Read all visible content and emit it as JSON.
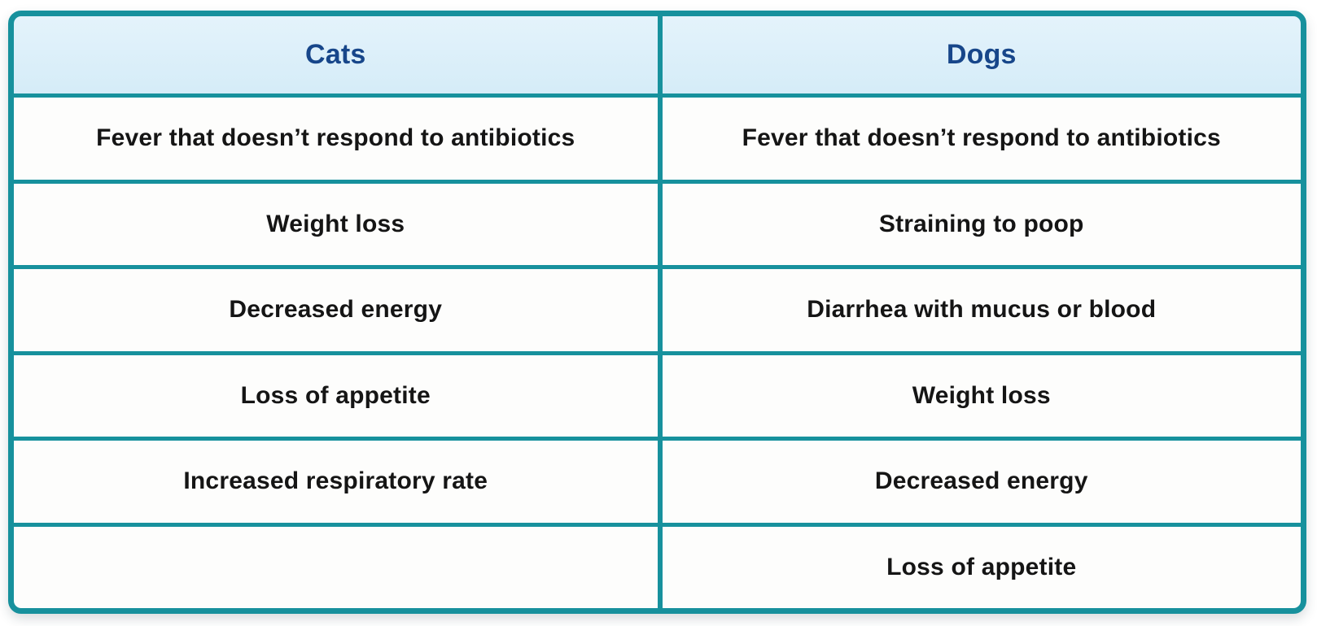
{
  "chart_data": {
    "type": "table",
    "title": "",
    "columns": [
      "Cats",
      "Dogs"
    ],
    "rows": [
      [
        "Fever that doesn’t respond to antibiotics",
        "Fever that doesn’t respond to antibiotics"
      ],
      [
        "Weight loss",
        "Straining to poop"
      ],
      [
        "Decreased energy",
        "Diarrhea with mucus or blood"
      ],
      [
        "Loss of appetite",
        "Weight loss"
      ],
      [
        "Increased respiratory rate",
        "Decreased energy"
      ],
      [
        "",
        "Loss of appetite"
      ]
    ],
    "layout_hints": {
      "header_row": true,
      "column_count": 2,
      "row_count": 6,
      "empty_cells": [
        [
          5,
          0
        ]
      ]
    }
  },
  "style": {
    "border_color": "#17919d",
    "header_background": "#ddeffa",
    "header_text_color": "#17468a",
    "cell_background": "#fdfdfc",
    "cell_text_color": "#151515"
  }
}
